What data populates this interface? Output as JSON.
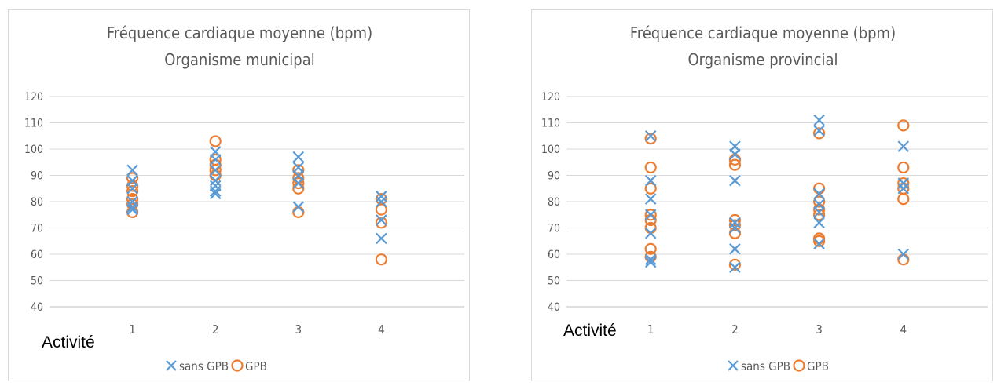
{
  "colors": {
    "sans_gpb": "#5b9bd5",
    "gpb": "#ed7d31",
    "grid": "#d9d9d9",
    "text": "#595959"
  },
  "chart_data": [
    {
      "type": "scatter",
      "title": "Fréquence cardiaque moyenne (bpm)",
      "subtitle": "Organisme municipal",
      "xlabel": "Activité",
      "ylabel": "",
      "categories": [
        "1",
        "2",
        "3",
        "4"
      ],
      "xlim": [
        0,
        5
      ],
      "ylim": [
        40,
        120
      ],
      "yticks": [
        40,
        50,
        60,
        70,
        80,
        90,
        100,
        110,
        120
      ],
      "grid": true,
      "legend_position": "bottom",
      "series": [
        {
          "name": "sans GPB",
          "marker": "x",
          "color": "#5b9bd5",
          "points": [
            [
              1,
              92
            ],
            [
              1,
              88
            ],
            [
              1,
              85
            ],
            [
              1,
              80
            ],
            [
              1,
              78
            ],
            [
              1,
              77
            ],
            [
              2,
              99
            ],
            [
              2,
              96
            ],
            [
              2,
              92
            ],
            [
              2,
              88
            ],
            [
              2,
              86
            ],
            [
              2,
              84
            ],
            [
              2,
              83
            ],
            [
              3,
              97
            ],
            [
              3,
              93
            ],
            [
              3,
              90
            ],
            [
              3,
              87
            ],
            [
              3,
              78
            ],
            [
              4,
              82
            ],
            [
              4,
              80
            ],
            [
              4,
              73
            ],
            [
              4,
              66
            ]
          ]
        },
        {
          "name": "GPB",
          "marker": "o",
          "color": "#ed7d31",
          "points": [
            [
              1,
              89
            ],
            [
              1,
              86
            ],
            [
              1,
              84
            ],
            [
              1,
              81
            ],
            [
              1,
              79
            ],
            [
              1,
              76
            ],
            [
              2,
              103
            ],
            [
              2,
              96
            ],
            [
              2,
              94
            ],
            [
              2,
              92
            ],
            [
              2,
              90
            ],
            [
              3,
              92
            ],
            [
              3,
              89
            ],
            [
              3,
              87
            ],
            [
              3,
              85
            ],
            [
              3,
              76
            ],
            [
              4,
              81
            ],
            [
              4,
              77
            ],
            [
              4,
              72
            ],
            [
              4,
              58
            ]
          ]
        }
      ]
    },
    {
      "type": "scatter",
      "title": "Fréquence cardiaque moyenne (bpm)",
      "subtitle": "Organisme provincial",
      "xlabel": "Activité",
      "ylabel": "",
      "categories": [
        "1",
        "2",
        "3",
        "4"
      ],
      "xlim": [
        0,
        5
      ],
      "ylim": [
        40,
        120
      ],
      "yticks": [
        40,
        50,
        60,
        70,
        80,
        90,
        100,
        110,
        120
      ],
      "grid": true,
      "legend_position": "bottom",
      "series": [
        {
          "name": "sans GPB",
          "marker": "x",
          "color": "#5b9bd5",
          "points": [
            [
              1,
              105
            ],
            [
              1,
              88
            ],
            [
              1,
              81
            ],
            [
              1,
              75
            ],
            [
              1,
              68
            ],
            [
              1,
              58
            ],
            [
              1,
              57
            ],
            [
              2,
              101
            ],
            [
              2,
              98
            ],
            [
              2,
              88
            ],
            [
              2,
              72
            ],
            [
              2,
              70
            ],
            [
              2,
              62
            ],
            [
              2,
              55
            ],
            [
              3,
              111
            ],
            [
              3,
              107
            ],
            [
              3,
              83
            ],
            [
              3,
              79
            ],
            [
              3,
              76
            ],
            [
              3,
              72
            ],
            [
              3,
              64
            ],
            [
              4,
              101
            ],
            [
              4,
              87
            ],
            [
              4,
              85
            ],
            [
              4,
              60
            ]
          ]
        },
        {
          "name": "GPB",
          "marker": "o",
          "color": "#ed7d31",
          "points": [
            [
              1,
              104
            ],
            [
              1,
              93
            ],
            [
              1,
              85
            ],
            [
              1,
              75
            ],
            [
              1,
              73
            ],
            [
              1,
              70
            ],
            [
              1,
              62
            ],
            [
              1,
              59
            ],
            [
              2,
              96
            ],
            [
              2,
              94
            ],
            [
              2,
              73
            ],
            [
              2,
              71
            ],
            [
              2,
              68
            ],
            [
              2,
              56
            ],
            [
              3,
              106
            ],
            [
              3,
              85
            ],
            [
              3,
              80
            ],
            [
              3,
              77
            ],
            [
              3,
              75
            ],
            [
              3,
              66
            ],
            [
              3,
              65
            ],
            [
              4,
              109
            ],
            [
              4,
              93
            ],
            [
              4,
              87
            ],
            [
              4,
              85
            ],
            [
              4,
              81
            ],
            [
              4,
              58
            ]
          ]
        }
      ]
    }
  ]
}
